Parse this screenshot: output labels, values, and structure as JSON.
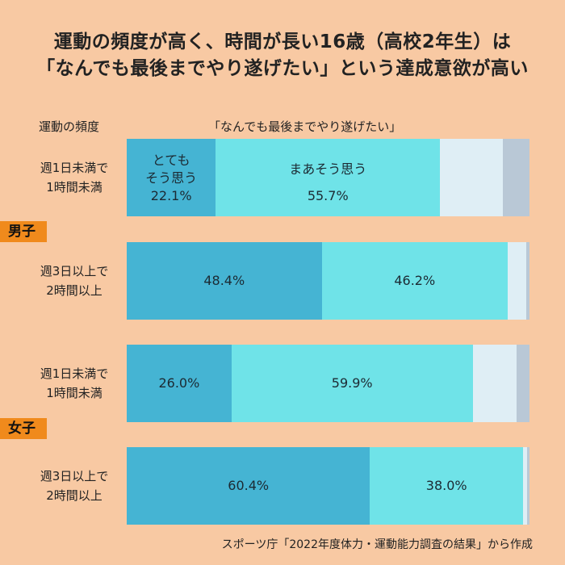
{
  "title": {
    "line1": "運動の頻度が高く、時間が長い16歳（高校2年生）は",
    "line2": "「なんでも最後までやり遂げたい」という達成意欲が高い"
  },
  "column_headers": {
    "left": "運動の頻度",
    "right": "「なんでも最後までやり遂げたい」"
  },
  "gender_tags": {
    "male": "男子",
    "female": "女子"
  },
  "source": "スポーツ庁「2022年度体力・運動能力調査の結果」から作成",
  "colors": {
    "totemo": "#45b4d3",
    "maa": "#6fe3e8",
    "other1": "#dfeef5",
    "other2": "#b9c8d6"
  },
  "chart_data": {
    "type": "bar",
    "orientation": "horizontal-stacked",
    "categories": [
      {
        "group": "男子",
        "label1": "週1日未満で",
        "label2": "1時間未満"
      },
      {
        "group": "男子",
        "label1": "週3日以上で",
        "label2": "2時間以上"
      },
      {
        "group": "女子",
        "label1": "週1日未満で",
        "label2": "1時間未満"
      },
      {
        "group": "女子",
        "label1": "週3日以上で",
        "label2": "2時間以上"
      }
    ],
    "series": [
      {
        "name_line1": "とても",
        "name_line2": "そう思う",
        "values": [
          22.1,
          48.4,
          26.0,
          60.4
        ],
        "labels": [
          "22.1%",
          "48.4%",
          "26.0%",
          "60.4%"
        ]
      },
      {
        "name": "まあそう思う",
        "values": [
          55.7,
          46.2,
          59.9,
          38.0
        ],
        "labels": [
          "55.7%",
          "46.2%",
          "59.9%",
          "38.0%"
        ]
      },
      {
        "values": [
          15.5,
          4.6,
          10.9,
          1.1
        ]
      },
      {
        "values": [
          6.7,
          0.8,
          3.2,
          0.5
        ]
      }
    ],
    "xlim": [
      0,
      100
    ],
    "legend": "inside-first-bar"
  }
}
